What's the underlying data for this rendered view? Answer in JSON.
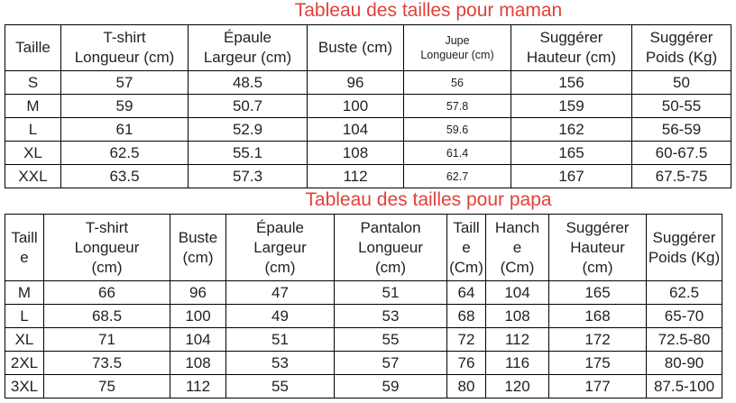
{
  "mom": {
    "title": "Tableau des tailles pour maman",
    "headers": [
      "Taille",
      "T-shirt\nLongueur (cm)",
      "Épaule\nLargeur (cm)",
      "Buste (cm)",
      "Jupe\nLongueur (cm)",
      "Suggérer\nHauteur (cm)",
      "Suggérer\nPoids (Kg)"
    ],
    "rows": [
      [
        "S",
        "57",
        "48.5",
        "96",
        "56",
        "156",
        "50"
      ],
      [
        "M",
        "59",
        "50.7",
        "100",
        "57.8",
        "159",
        "50-55"
      ],
      [
        "L",
        "61",
        "52.9",
        "104",
        "59.6",
        "162",
        "56-59"
      ],
      [
        "XL",
        "62.5",
        "55.1",
        "108",
        "61.4",
        "165",
        "60-67.5"
      ],
      [
        "XXL",
        "63.5",
        "57.3",
        "112",
        "62.7",
        "167",
        "67.5-75"
      ]
    ]
  },
  "dad": {
    "title": "Tableau des tailles pour papa",
    "headers": [
      "Taill\ne",
      "T-shirt\nLongueur\n(cm)",
      "Buste\n(cm)",
      "Épaule\nLargeur\n(cm)",
      "Pantalon\nLongueur\n(cm)",
      "Taill\ne\n(Cm)",
      "Hanch\ne\n(Cm)",
      "Suggérer\nHauteur\n(cm)",
      "Suggérer\nPoids (Kg)"
    ],
    "rows": [
      [
        "M",
        "66",
        "96",
        "47",
        "51",
        "64",
        "104",
        "165",
        "62.5"
      ],
      [
        "L",
        "68.5",
        "100",
        "49",
        "53",
        "68",
        "108",
        "168",
        "65-70"
      ],
      [
        "XL",
        "71",
        "104",
        "51",
        "55",
        "72",
        "112",
        "172",
        "72.5-80"
      ],
      [
        "2XL",
        "73.5",
        "108",
        "53",
        "57",
        "76",
        "116",
        "175",
        "80-90"
      ],
      [
        "3XL",
        "75",
        "112",
        "55",
        "59",
        "80",
        "120",
        "177",
        "87.5-100"
      ]
    ]
  }
}
